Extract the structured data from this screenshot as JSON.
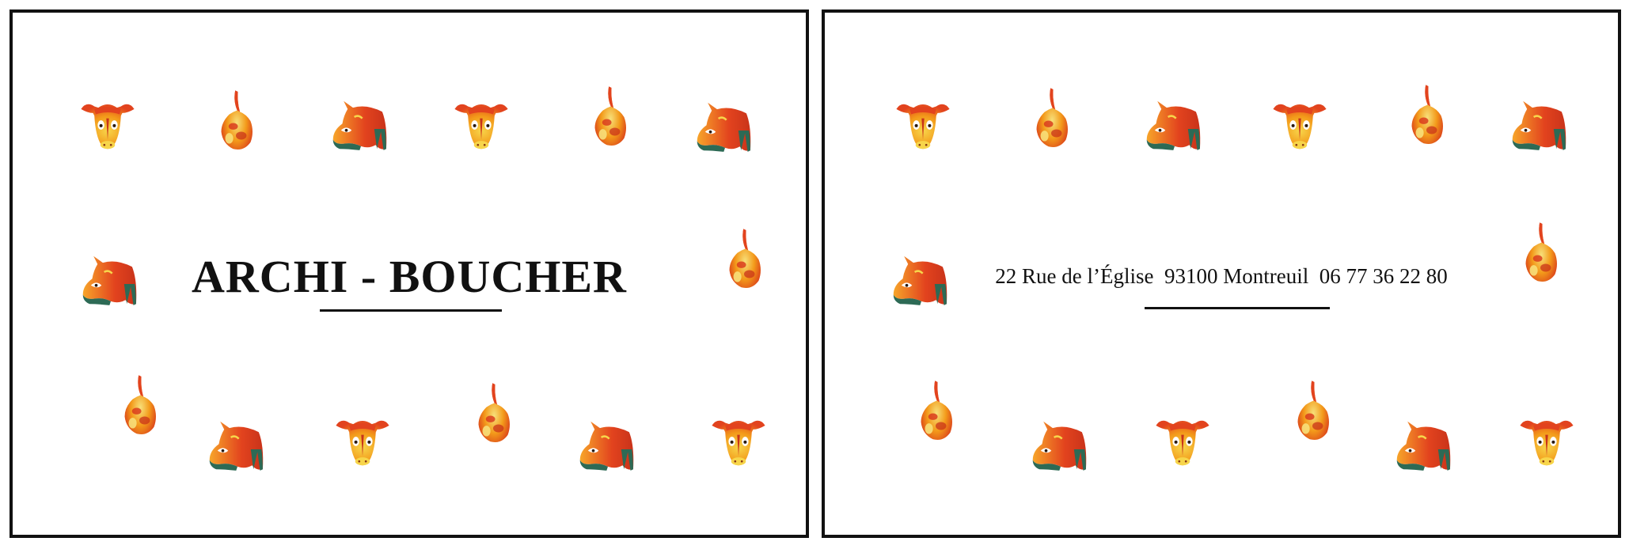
{
  "front": {
    "title": "ARCHI - BOUCHER"
  },
  "back": {
    "address": "22 Rue de l’Église  93100 Montreuil  06 77 36 22 80"
  },
  "icons": {
    "cow_face": "cow-face-icon",
    "cow_profile": "cow-profile-icon",
    "tongue": "beef-tongue-icon"
  },
  "colors": {
    "border": "#111111",
    "red": "#e2431e",
    "orange": "#f39a1a",
    "yellow": "#f7d54a",
    "green": "#2d6a55"
  }
}
